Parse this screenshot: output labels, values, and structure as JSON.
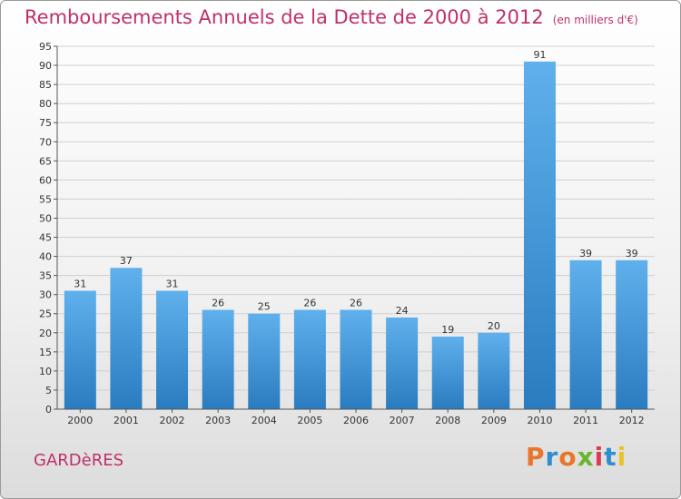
{
  "title": "Remboursements Annuels de la Dette de 2000 à 2012",
  "unit": "(en milliers d'€)",
  "town": "GARDèRES",
  "logo": {
    "text": "Proxiti",
    "colors": [
      "#e8762a",
      "#2f8ecf",
      "#e8762a",
      "#6cb52e",
      "#e03a4e",
      "#2f8ecf",
      "#e8c42a"
    ]
  },
  "colors": {
    "bar_light": "#5fb0ec",
    "bar_dark": "#2a7cc0",
    "title": "#c0306a"
  },
  "chart_data": {
    "type": "bar",
    "title": "Remboursements Annuels de la Dette de 2000 à 2012",
    "xlabel": "",
    "ylabel": "",
    "ylim": [
      0,
      95
    ],
    "yticks": [
      0,
      5,
      10,
      15,
      20,
      25,
      30,
      35,
      40,
      45,
      50,
      55,
      60,
      65,
      70,
      75,
      80,
      85,
      90,
      95
    ],
    "grid": true,
    "categories": [
      "2000",
      "2001",
      "2002",
      "2003",
      "2004",
      "2005",
      "2006",
      "2007",
      "2008",
      "2009",
      "2010",
      "2011",
      "2012"
    ],
    "values": [
      31,
      37,
      31,
      26,
      25,
      26,
      26,
      24,
      19,
      20,
      91,
      39,
      39
    ]
  }
}
